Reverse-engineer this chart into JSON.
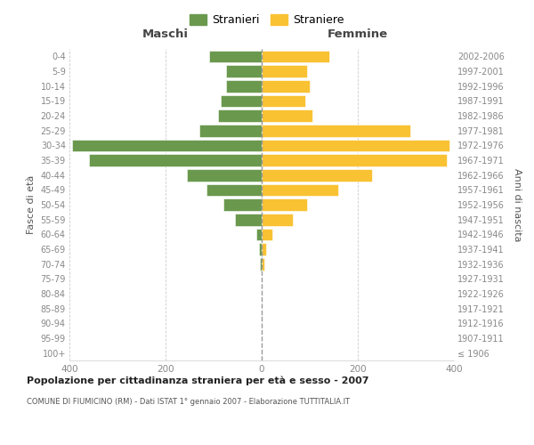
{
  "age_groups": [
    "100+",
    "95-99",
    "90-94",
    "85-89",
    "80-84",
    "75-79",
    "70-74",
    "65-69",
    "60-64",
    "55-59",
    "50-54",
    "45-49",
    "40-44",
    "35-39",
    "30-34",
    "25-29",
    "20-24",
    "15-19",
    "10-14",
    "5-9",
    "0-4"
  ],
  "birth_years": [
    "≤ 1906",
    "1907-1911",
    "1912-1916",
    "1917-1921",
    "1922-1926",
    "1927-1931",
    "1932-1936",
    "1937-1941",
    "1942-1946",
    "1947-1951",
    "1952-1956",
    "1957-1961",
    "1962-1966",
    "1967-1971",
    "1972-1976",
    "1977-1981",
    "1982-1986",
    "1987-1991",
    "1992-1996",
    "1997-2001",
    "2002-2006"
  ],
  "maschi": [
    0,
    0,
    0,
    0,
    0,
    0,
    3,
    5,
    12,
    55,
    80,
    115,
    155,
    360,
    395,
    130,
    90,
    85,
    75,
    75,
    110
  ],
  "femmine": [
    0,
    0,
    0,
    0,
    0,
    0,
    5,
    10,
    22,
    65,
    95,
    160,
    230,
    385,
    390,
    310,
    105,
    90,
    100,
    95,
    140
  ],
  "color_maschi": "#6a994e",
  "color_femmine": "#f9c233",
  "title": "Popolazione per cittadinanza straniera per età e sesso - 2007",
  "subtitle": "COMUNE DI FIUMICINO (RM) - Dati ISTAT 1° gennaio 2007 - Elaborazione TUTTITALIA.IT",
  "header_left": "Maschi",
  "header_right": "Femmine",
  "ylabel_left": "Fasce di età",
  "ylabel_right": "Anni di nascita",
  "xlim": 400,
  "legend_stranieri": "Stranieri",
  "legend_straniere": "Straniere",
  "bg_color": "#ffffff",
  "grid_color": "#cccccc",
  "bar_edgecolor": "#ffffff",
  "axis_label_color": "#555555",
  "tick_color": "#888888"
}
